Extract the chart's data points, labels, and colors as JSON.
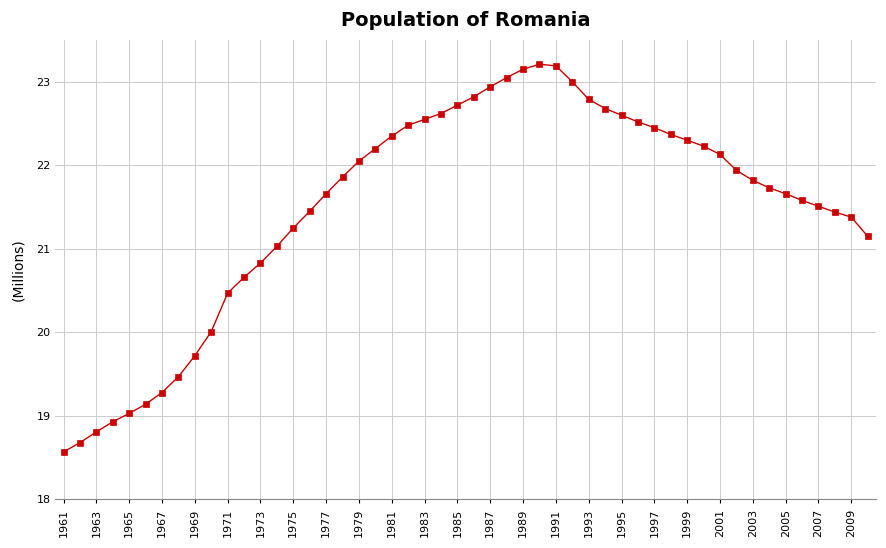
{
  "title": "Population of Romania",
  "ylabel": "(Millions)",
  "years": [
    1961,
    1962,
    1963,
    1964,
    1965,
    1966,
    1967,
    1968,
    1969,
    1970,
    1971,
    1972,
    1973,
    1974,
    1975,
    1976,
    1977,
    1978,
    1979,
    1980,
    1981,
    1982,
    1983,
    1984,
    1985,
    1986,
    1987,
    1988,
    1989,
    1990,
    1991,
    1992,
    1993,
    1994,
    1995,
    1996,
    1997,
    1998,
    1999,
    2000,
    2001,
    2002,
    2003,
    2004,
    2005,
    2006,
    2007,
    2008,
    2009,
    2010
  ],
  "population": [
    18.57,
    18.68,
    18.81,
    18.93,
    19.03,
    19.14,
    19.28,
    19.47,
    19.72,
    20.01,
    20.47,
    20.66,
    20.83,
    21.03,
    21.25,
    21.45,
    21.66,
    21.86,
    22.05,
    22.2,
    22.35,
    22.48,
    22.55,
    22.62,
    22.72,
    22.82,
    22.94,
    23.05,
    23.15,
    23.21,
    23.19,
    23.0,
    22.79,
    22.68,
    22.6,
    22.52,
    22.45,
    22.37,
    22.3,
    22.23,
    22.13,
    21.94,
    21.82,
    21.73,
    21.66,
    21.58,
    21.51,
    21.44,
    21.38,
    21.15
  ],
  "line_color": "#cc0000",
  "marker_color": "#cc0000",
  "marker": "s",
  "marker_size": 4,
  "linewidth": 1.0,
  "ylim": [
    18,
    23.5
  ],
  "yticks": [
    18,
    19,
    20,
    21,
    22,
    23
  ],
  "xlim_left": 1960.5,
  "xlim_right": 2010.5,
  "background_color": "#ffffff",
  "grid_color": "#cccccc",
  "title_fontsize": 14,
  "label_fontsize": 10,
  "tick_fontsize": 8
}
